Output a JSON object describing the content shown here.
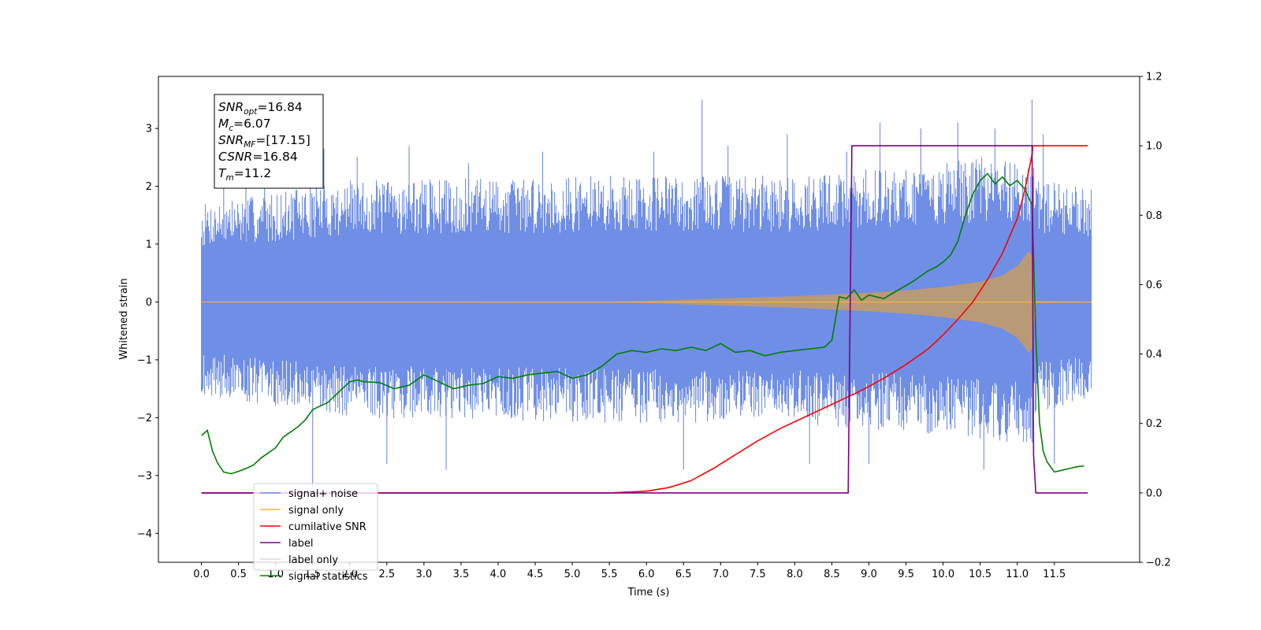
{
  "chart_data": {
    "type": "line",
    "xlabel": "Time (s)",
    "ylabel": "Whitened strain",
    "xlim": [
      -0.58,
      12.65
    ],
    "ylim": [
      -4.5,
      3.9
    ],
    "y2lim": [
      -0.2,
      1.2
    ],
    "xticks": [
      0.0,
      0.5,
      1.0,
      1.5,
      2.0,
      2.5,
      3.0,
      3.5,
      4.0,
      4.5,
      5.0,
      5.5,
      6.0,
      6.5,
      7.0,
      7.5,
      8.0,
      8.5,
      9.0,
      9.5,
      10.0,
      10.5,
      11.0,
      11.5
    ],
    "yticks": [
      -4,
      -3,
      -2,
      -1,
      0,
      1,
      2,
      3
    ],
    "y2ticks": [
      -0.2,
      0.0,
      0.2,
      0.4,
      0.6,
      0.8,
      1.0,
      1.2
    ],
    "grid": false,
    "legend_position": "lower-left",
    "annotation": {
      "lines": [
        {
          "base": "SNR",
          "sub": "opt",
          "rest": "=16.84"
        },
        {
          "base": "M",
          "sub": "c",
          "rest": "=6.07"
        },
        {
          "base": "SNR",
          "sub": "MF",
          "rest": "=[17.15]"
        },
        {
          "base": "CSNR",
          "sub": "",
          "rest": "=16.84"
        },
        {
          "base": "T",
          "sub": "m",
          "rest": "=11.2"
        }
      ]
    },
    "series": [
      {
        "name": "signal+ noise",
        "axis": "left",
        "color": "#6f8ee6",
        "kind": "noise_band",
        "envelope": {
          "x": [
            0.0,
            2.0,
            6.0,
            8.0,
            9.0,
            10.0,
            10.5,
            11.0,
            11.2,
            11.25,
            12.0
          ],
          "upper": [
            1.7,
            2.1,
            2.2,
            2.2,
            2.3,
            2.4,
            2.5,
            2.5,
            2.5,
            2.1,
            2.0
          ],
          "lower": [
            -1.6,
            -2.0,
            -2.1,
            -2.1,
            -2.2,
            -2.3,
            -2.4,
            -2.5,
            -2.5,
            -1.9,
            -1.7
          ]
        },
        "spikes": [
          [
            0.3,
            2.2
          ],
          [
            0.6,
            2.0
          ],
          [
            0.85,
            2.4
          ],
          [
            1.5,
            -3.2
          ],
          [
            1.55,
            2.5
          ],
          [
            1.65,
            2.65
          ],
          [
            2.1,
            2.5
          ],
          [
            2.5,
            -2.8
          ],
          [
            2.8,
            2.7
          ],
          [
            3.3,
            -2.9
          ],
          [
            3.6,
            2.4
          ],
          [
            4.6,
            2.6
          ],
          [
            6.1,
            2.6
          ],
          [
            6.5,
            -2.9
          ],
          [
            6.75,
            3.5
          ],
          [
            7.1,
            2.7
          ],
          [
            7.9,
            2.9
          ],
          [
            8.2,
            -2.8
          ],
          [
            8.7,
            2.6
          ],
          [
            9.0,
            -2.8
          ],
          [
            9.15,
            3.1
          ],
          [
            9.7,
            3.0
          ],
          [
            10.2,
            3.1
          ],
          [
            10.55,
            -2.9
          ],
          [
            10.7,
            3.0
          ],
          [
            11.2,
            3.5
          ],
          [
            11.35,
            2.9
          ],
          [
            11.5,
            -2.8
          ]
        ]
      },
      {
        "name": "signal only",
        "axis": "left",
        "color": "#ffb347",
        "fill": "#b99a76",
        "kind": "chirp",
        "x": [
          0.0,
          5.5,
          6.0,
          6.5,
          7.0,
          7.5,
          8.0,
          8.5,
          9.0,
          9.5,
          10.0,
          10.5,
          10.8,
          11.0,
          11.1,
          11.15,
          11.2,
          11.25,
          12.0
        ],
        "amplitude": [
          0.005,
          0.01,
          0.02,
          0.04,
          0.06,
          0.08,
          0.1,
          0.13,
          0.16,
          0.2,
          0.26,
          0.35,
          0.46,
          0.62,
          0.78,
          0.88,
          0.8,
          0.02,
          0.01
        ]
      },
      {
        "name": "cumilative SNR",
        "axis": "right",
        "color": "#ff0000",
        "x": [
          0.0,
          5.5,
          6.0,
          6.3,
          6.6,
          6.9,
          7.2,
          7.5,
          7.8,
          8.0,
          8.3,
          8.6,
          8.9,
          9.2,
          9.5,
          9.8,
          10.0,
          10.2,
          10.4,
          10.6,
          10.8,
          11.0,
          11.1,
          11.2,
          11.21,
          11.22,
          11.95
        ],
        "values": [
          0.0,
          0.0,
          0.005,
          0.015,
          0.035,
          0.07,
          0.11,
          0.15,
          0.185,
          0.205,
          0.235,
          0.265,
          0.295,
          0.33,
          0.37,
          0.415,
          0.455,
          0.5,
          0.55,
          0.615,
          0.69,
          0.79,
          0.87,
          0.975,
          1.0,
          1.0,
          1.0
        ]
      },
      {
        "name": "label",
        "axis": "right",
        "color": "#800080",
        "x": [
          0.0,
          8.72,
          8.77,
          11.2,
          11.22,
          11.25,
          11.95
        ],
        "values": [
          0.0,
          0.0,
          1.0,
          1.0,
          0.11,
          0.0,
          0.0
        ]
      },
      {
        "name": "label only",
        "axis": "right",
        "color": "#d8d8d8",
        "hidden_in_plot": true,
        "x": [],
        "values": []
      },
      {
        "name": "signal statistics",
        "axis": "right",
        "color": "#008000",
        "x": [
          0.0,
          0.08,
          0.15,
          0.22,
          0.3,
          0.4,
          0.5,
          0.6,
          0.7,
          0.8,
          0.9,
          1.0,
          1.1,
          1.2,
          1.3,
          1.4,
          1.5,
          1.6,
          1.7,
          1.8,
          1.9,
          2.0,
          2.1,
          2.2,
          2.4,
          2.6,
          2.8,
          3.0,
          3.2,
          3.4,
          3.6,
          3.8,
          4.0,
          4.2,
          4.4,
          4.6,
          4.8,
          5.0,
          5.2,
          5.4,
          5.6,
          5.8,
          6.0,
          6.2,
          6.4,
          6.6,
          6.8,
          7.0,
          7.2,
          7.4,
          7.6,
          7.8,
          8.0,
          8.2,
          8.4,
          8.5,
          8.6,
          8.7,
          8.8,
          8.9,
          9.0,
          9.2,
          9.4,
          9.6,
          9.7,
          9.8,
          9.9,
          10.0,
          10.1,
          10.2,
          10.3,
          10.4,
          10.5,
          10.6,
          10.7,
          10.8,
          10.9,
          11.0,
          11.1,
          11.2,
          11.25,
          11.3,
          11.35,
          11.4,
          11.5,
          11.6,
          11.7,
          11.8,
          11.9
        ],
        "values": [
          0.165,
          0.18,
          0.12,
          0.085,
          0.06,
          0.055,
          0.062,
          0.07,
          0.08,
          0.1,
          0.115,
          0.13,
          0.16,
          0.175,
          0.19,
          0.21,
          0.24,
          0.25,
          0.26,
          0.28,
          0.3,
          0.32,
          0.325,
          0.32,
          0.318,
          0.3,
          0.31,
          0.34,
          0.32,
          0.3,
          0.31,
          0.315,
          0.335,
          0.33,
          0.34,
          0.345,
          0.35,
          0.33,
          0.34,
          0.365,
          0.4,
          0.41,
          0.405,
          0.415,
          0.41,
          0.42,
          0.41,
          0.43,
          0.405,
          0.41,
          0.395,
          0.405,
          0.41,
          0.415,
          0.42,
          0.44,
          0.565,
          0.56,
          0.585,
          0.555,
          0.57,
          0.56,
          0.585,
          0.61,
          0.625,
          0.64,
          0.65,
          0.665,
          0.685,
          0.725,
          0.8,
          0.86,
          0.9,
          0.92,
          0.89,
          0.91,
          0.885,
          0.9,
          0.875,
          0.83,
          0.45,
          0.2,
          0.12,
          0.09,
          0.06,
          0.065,
          0.07,
          0.075,
          0.078
        ]
      }
    ]
  }
}
